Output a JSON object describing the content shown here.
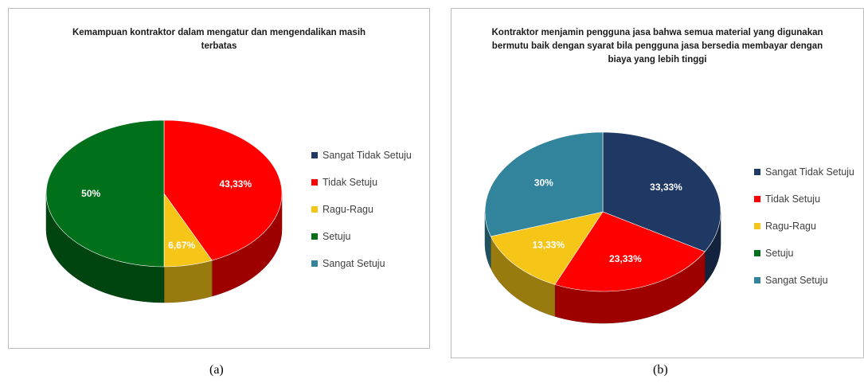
{
  "chart_data": [
    {
      "type": "pie",
      "title": "Kemampuan kontraktor dalam mengatur dan mengendalikan masih terbatas",
      "categories": [
        "Sangat Tidak Setuju",
        "Tidak Setuju",
        "Ragu-Ragu",
        "Setuju",
        "Sangat Setuju"
      ],
      "values": [
        0,
        43.33,
        6.67,
        50,
        0
      ],
      "data_labels": [
        "",
        "43,33%",
        "6,67%",
        "50%",
        ""
      ],
      "colors": [
        "#1f3864",
        "#ff0000",
        "#f5c518",
        "#00701a",
        "#31849b"
      ],
      "legend_position": "right",
      "style": "3d"
    },
    {
      "type": "pie",
      "title": "Kontraktor menjamin pengguna jasa bahwa semua material yang digunakan bermutu baik dengan syarat bila pengguna jasa bersedia membayar dengan biaya yang lebih tinggi",
      "categories": [
        "Sangat Tidak Setuju",
        "Tidak Setuju",
        "Ragu-Ragu",
        "Setuju",
        "Sangat Setuju"
      ],
      "values": [
        33.33,
        23.33,
        13.33,
        0,
        30
      ],
      "data_labels": [
        "33,33%",
        "23,33%",
        "13,33%",
        "",
        "30%"
      ],
      "colors": [
        "#1f3864",
        "#ff0000",
        "#f5c518",
        "#00701a",
        "#31849b"
      ],
      "legend_position": "right",
      "style": "3d"
    }
  ],
  "captions": [
    "(a)",
    "(b)"
  ]
}
